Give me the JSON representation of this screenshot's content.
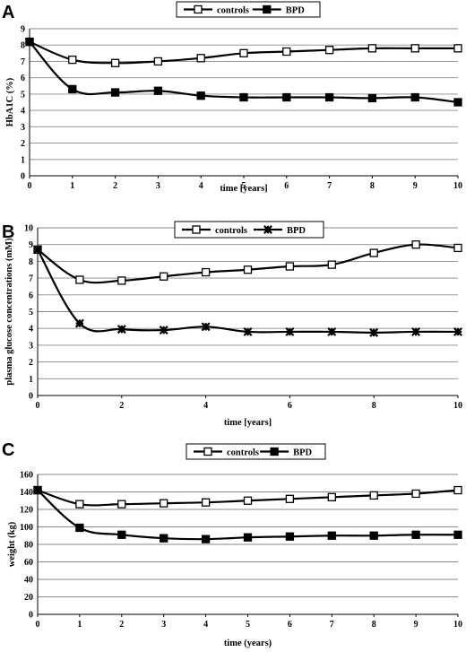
{
  "chart_data": [
    {
      "type": "line",
      "panel": "A",
      "x": [
        0,
        1,
        2,
        3,
        4,
        5,
        6,
        7,
        8,
        9,
        10
      ],
      "xlabel": "time [years]",
      "ylabel": "HbA1C (%)",
      "xlim": [
        0,
        10
      ],
      "ylim": [
        0,
        9
      ],
      "xticks": [
        "0",
        "1",
        "2",
        "3",
        "4",
        "5",
        "6",
        "7",
        "8",
        "9",
        "10"
      ],
      "yticks": [
        "0",
        "1",
        "2",
        "3",
        "4",
        "5",
        "6",
        "7",
        "8",
        "9"
      ],
      "grid": true,
      "legend_position": "top",
      "series": [
        {
          "name": "controls",
          "marker": "open-square",
          "values": [
            8.2,
            7.1,
            6.9,
            7.0,
            7.2,
            7.5,
            7.6,
            7.7,
            7.8,
            7.8,
            7.8
          ]
        },
        {
          "name": "BPD",
          "marker": "filled-square",
          "values": [
            8.2,
            5.3,
            5.1,
            5.2,
            4.9,
            4.8,
            4.8,
            4.8,
            4.75,
            4.8,
            4.5
          ]
        }
      ]
    },
    {
      "type": "line",
      "panel": "B",
      "x": [
        0,
        1,
        2,
        3,
        4,
        5,
        6,
        7,
        8,
        9,
        10
      ],
      "xlabel": "time [years]",
      "ylabel": "plasma glucose concentrations (mM)",
      "xlim": [
        0,
        10
      ],
      "ylim": [
        0,
        10
      ],
      "xticks": [
        "0",
        "2",
        "4",
        "6",
        "8",
        "10"
      ],
      "yticks": [
        "0",
        "1",
        "2",
        "3",
        "4",
        "5",
        "6",
        "7",
        "8",
        "9",
        "10"
      ],
      "grid": true,
      "legend_position": "top",
      "series": [
        {
          "name": "controls",
          "marker": "open-square",
          "values": [
            8.7,
            6.9,
            6.85,
            7.1,
            7.35,
            7.5,
            7.7,
            7.8,
            8.5,
            9.0,
            8.8
          ]
        },
        {
          "name": "BPD",
          "marker": "star",
          "values": [
            8.7,
            4.3,
            3.95,
            3.9,
            4.1,
            3.8,
            3.8,
            3.8,
            3.75,
            3.8,
            3.8
          ]
        }
      ]
    },
    {
      "type": "line",
      "panel": "C",
      "x": [
        0,
        1,
        2,
        3,
        4,
        5,
        6,
        7,
        8,
        9,
        10
      ],
      "xlabel": "time (years)",
      "ylabel": "weight (kg)",
      "xlim": [
        0,
        10
      ],
      "ylim": [
        0,
        160
      ],
      "xticks": [
        "0",
        "1",
        "2",
        "3",
        "4",
        "5",
        "6",
        "7",
        "8",
        "9",
        "10"
      ],
      "yticks": [
        "0",
        "20",
        "40",
        "60",
        "80",
        "100",
        "120",
        "140",
        "160"
      ],
      "grid": true,
      "legend_position": "top",
      "series": [
        {
          "name": "controls",
          "marker": "open-square",
          "values": [
            142,
            126,
            126,
            127,
            128,
            130,
            132,
            134,
            136,
            138,
            142
          ]
        },
        {
          "name": "BPD",
          "marker": "filled-square",
          "values": [
            142,
            99,
            91,
            87,
            86,
            88,
            89,
            90,
            90,
            91,
            91
          ]
        }
      ]
    }
  ]
}
